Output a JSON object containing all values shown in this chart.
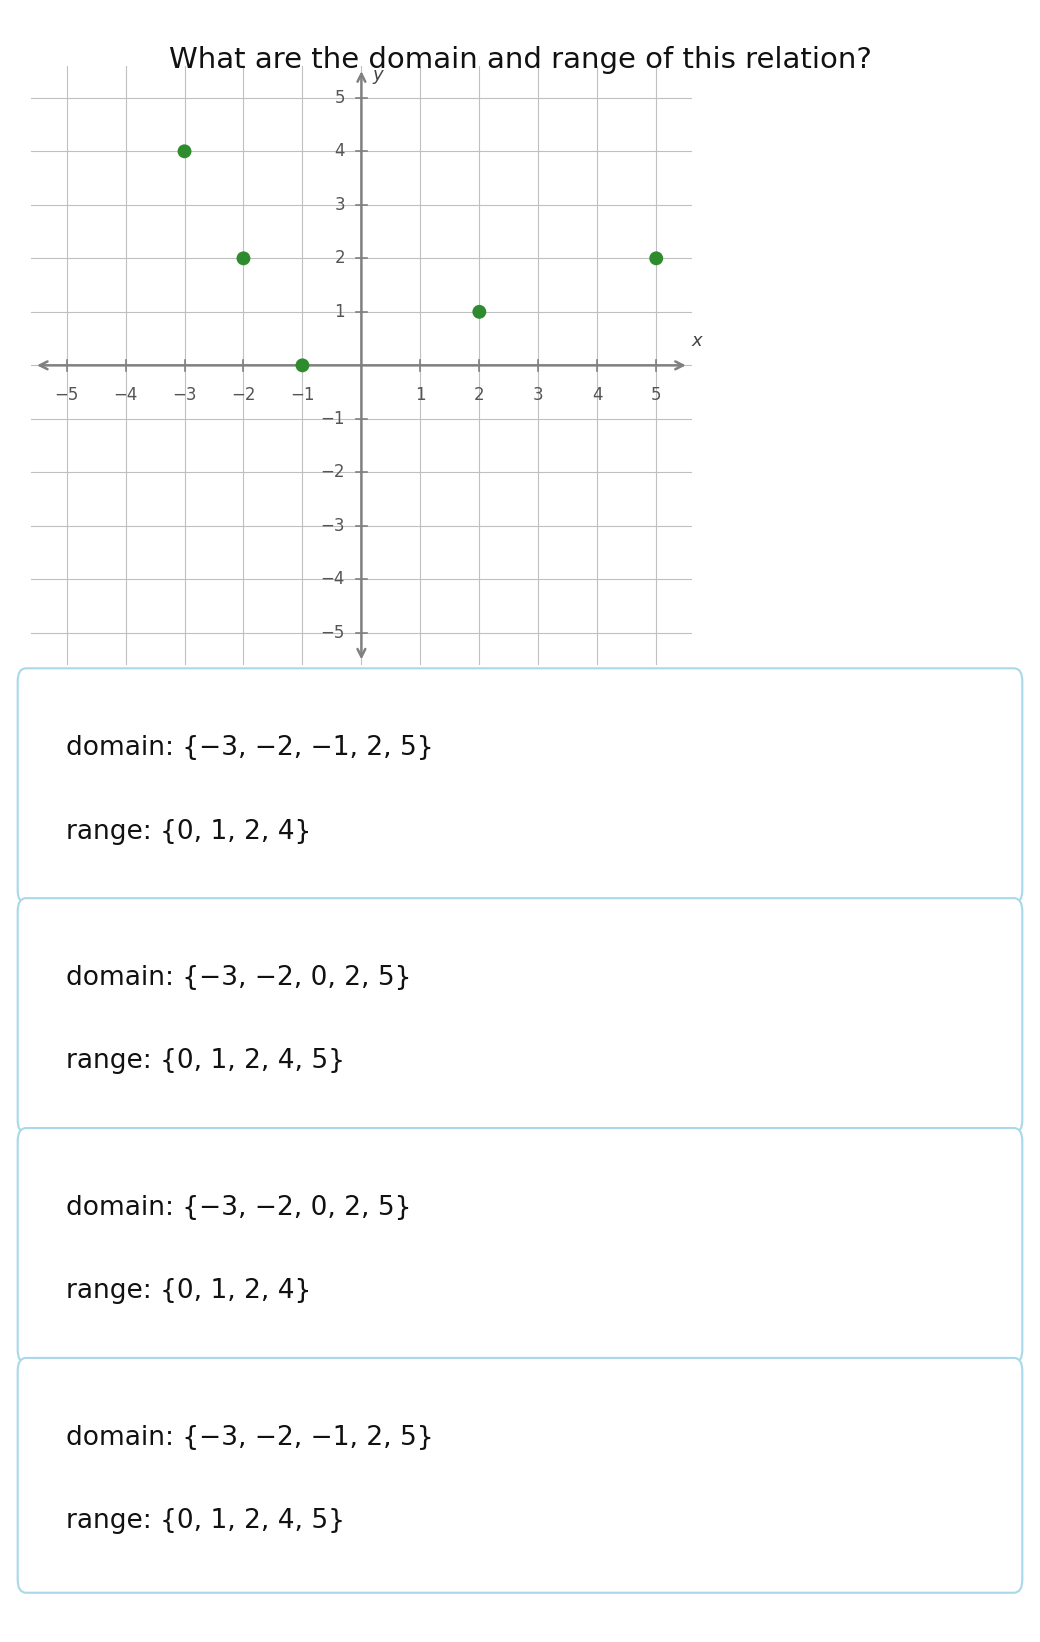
{
  "title": "What are the domain and range of this relation?",
  "title_fontsize": 21,
  "background_color": "#ffffff",
  "points": [
    [
      -3,
      4
    ],
    [
      -2,
      2
    ],
    [
      -1,
      0
    ],
    [
      2,
      1
    ],
    [
      5,
      2
    ]
  ],
  "point_color": "#2e8b2e",
  "point_size": 100,
  "grid_color": "#c0c0c0",
  "axis_color": "#808080",
  "axis_lim": [
    -5.6,
    5.6
  ],
  "tick_labels_x": [
    -5,
    -4,
    -3,
    -2,
    -1,
    1,
    2,
    3,
    4,
    5
  ],
  "tick_labels_y": [
    -5,
    -4,
    -3,
    -2,
    -1,
    1,
    2,
    3,
    4,
    5
  ],
  "answer_boxes": [
    {
      "domain_text": "domain: {−3, −2, −1, 2, 5}",
      "range_text": "range: {0, 1, 2, 4}"
    },
    {
      "domain_text": "domain: {−3, −2, 0, 2, 5}",
      "range_text": "range: {0, 1, 2, 4, 5}"
    },
    {
      "domain_text": "domain: {−3, −2, 0, 2, 5}",
      "range_text": "range: {0, 1, 2, 4}"
    },
    {
      "domain_text": "domain: {−3, −2, −1, 2, 5}",
      "range_text": "range: {0, 1, 2, 4, 5}"
    }
  ],
  "box_border_color": "#a8d8ea",
  "box_bg_color": "#ffffff",
  "answer_fontsize": 19,
  "tick_fontsize": 12,
  "axis_label_fontsize": 13
}
